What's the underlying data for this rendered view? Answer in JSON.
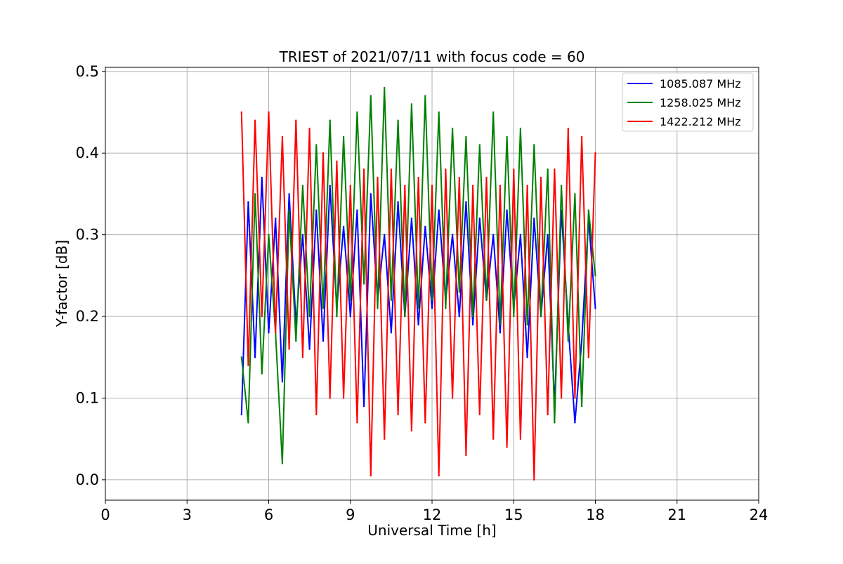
{
  "chart_data": {
    "type": "line",
    "title": "TRIEST of 2021/07/11 with focus code = 60",
    "xlabel": "Universal Time [h]",
    "ylabel": "Y-factor [dB]",
    "xlim": [
      0,
      24
    ],
    "ylim": [
      -0.025,
      0.505
    ],
    "xticks": [
      0,
      3,
      6,
      9,
      12,
      15,
      18,
      21,
      24
    ],
    "xtick_labels": [
      "0",
      "3",
      "6",
      "9",
      "12",
      "15",
      "18",
      "21",
      "24"
    ],
    "yticks": [
      0.0,
      0.1,
      0.2,
      0.3,
      0.4,
      0.5
    ],
    "ytick_labels": [
      "0.0",
      "0.1",
      "0.2",
      "0.3",
      "0.4",
      "0.5"
    ],
    "grid": true,
    "legend_position": "upper right",
    "series": [
      {
        "name": "1085.087 MHz",
        "color": "#0000ff",
        "x": [
          5.0,
          5.25,
          5.5,
          5.75,
          6.0,
          6.25,
          6.5,
          6.75,
          7.0,
          7.25,
          7.5,
          7.75,
          8.0,
          8.25,
          8.5,
          8.75,
          9.0,
          9.25,
          9.5,
          9.75,
          10.0,
          10.25,
          10.5,
          10.75,
          11.0,
          11.25,
          11.5,
          11.75,
          12.0,
          12.25,
          12.5,
          12.75,
          13.0,
          13.25,
          13.5,
          13.75,
          14.0,
          14.25,
          14.5,
          14.75,
          15.0,
          15.25,
          15.5,
          15.75,
          16.0,
          16.25,
          16.5,
          16.75,
          17.0,
          17.25,
          17.5,
          17.75,
          18.0
        ],
        "values": [
          0.08,
          0.34,
          0.15,
          0.37,
          0.18,
          0.32,
          0.12,
          0.35,
          0.19,
          0.3,
          0.16,
          0.33,
          0.17,
          0.36,
          0.21,
          0.31,
          0.2,
          0.33,
          0.09,
          0.35,
          0.22,
          0.3,
          0.18,
          0.34,
          0.2,
          0.32,
          0.19,
          0.31,
          0.21,
          0.33,
          0.22,
          0.3,
          0.2,
          0.34,
          0.19,
          0.32,
          0.22,
          0.3,
          0.18,
          0.33,
          0.21,
          0.3,
          0.15,
          0.32,
          0.2,
          0.3,
          0.09,
          0.33,
          0.19,
          0.07,
          0.17,
          0.32,
          0.21
        ]
      },
      {
        "name": "1258.025 MHz",
        "color": "#008000",
        "x": [
          5.0,
          5.25,
          5.5,
          5.75,
          6.0,
          6.25,
          6.5,
          6.75,
          7.0,
          7.25,
          7.5,
          7.75,
          8.0,
          8.25,
          8.5,
          8.75,
          9.0,
          9.25,
          9.5,
          9.75,
          10.0,
          10.25,
          10.5,
          10.75,
          11.0,
          11.25,
          11.5,
          11.75,
          12.0,
          12.25,
          12.5,
          12.75,
          13.0,
          13.25,
          13.5,
          13.75,
          14.0,
          14.25,
          14.5,
          14.75,
          15.0,
          15.25,
          15.5,
          15.75,
          16.0,
          16.25,
          16.5,
          16.75,
          17.0,
          17.25,
          17.5,
          17.75,
          18.0
        ],
        "values": [
          0.15,
          0.07,
          0.35,
          0.13,
          0.3,
          0.18,
          0.02,
          0.33,
          0.17,
          0.36,
          0.2,
          0.41,
          0.21,
          0.44,
          0.2,
          0.42,
          0.22,
          0.45,
          0.24,
          0.47,
          0.21,
          0.48,
          0.22,
          0.44,
          0.2,
          0.46,
          0.21,
          0.47,
          0.22,
          0.45,
          0.21,
          0.43,
          0.23,
          0.42,
          0.2,
          0.41,
          0.22,
          0.45,
          0.19,
          0.42,
          0.2,
          0.43,
          0.19,
          0.41,
          0.2,
          0.38,
          0.07,
          0.36,
          0.17,
          0.35,
          0.09,
          0.33,
          0.25
        ]
      },
      {
        "name": "1422.212 MHz",
        "color": "#ff0000",
        "x": [
          5.0,
          5.25,
          5.5,
          5.75,
          6.0,
          6.25,
          6.5,
          6.75,
          7.0,
          7.25,
          7.5,
          7.75,
          8.0,
          8.25,
          8.5,
          8.75,
          9.0,
          9.25,
          9.5,
          9.75,
          10.0,
          10.25,
          10.5,
          10.75,
          11.0,
          11.25,
          11.5,
          11.75,
          12.0,
          12.25,
          12.5,
          12.75,
          13.0,
          13.25,
          13.5,
          13.75,
          14.0,
          14.25,
          14.5,
          14.75,
          15.0,
          15.25,
          15.5,
          15.75,
          16.0,
          16.25,
          16.5,
          16.75,
          17.0,
          17.25,
          17.5,
          17.75,
          18.0
        ],
        "values": [
          0.45,
          0.14,
          0.44,
          0.2,
          0.45,
          0.18,
          0.42,
          0.16,
          0.44,
          0.15,
          0.43,
          0.08,
          0.4,
          0.1,
          0.39,
          0.1,
          0.36,
          0.07,
          0.38,
          0.005,
          0.37,
          0.05,
          0.38,
          0.08,
          0.36,
          0.06,
          0.37,
          0.07,
          0.36,
          0.005,
          0.38,
          0.1,
          0.37,
          0.03,
          0.36,
          0.08,
          0.37,
          0.05,
          0.36,
          0.04,
          0.38,
          0.05,
          0.36,
          0.0,
          0.37,
          0.08,
          0.38,
          0.1,
          0.43,
          0.1,
          0.42,
          0.15,
          0.4
        ]
      }
    ]
  }
}
